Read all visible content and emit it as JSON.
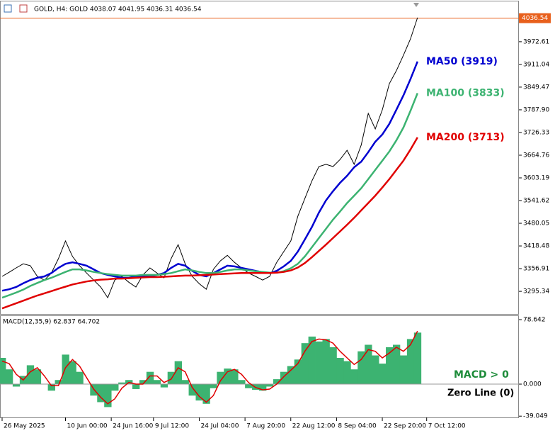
{
  "chart_data": [
    {
      "type": "line",
      "title": "GOLD, H4:  GOLD  4038.07 4041.95 4036.31 4036.54",
      "last_price": 4036.54,
      "xlim": [
        -0.3,
        73.4
      ],
      "xticks": [
        {
          "value": 0,
          "label": "26 May 2025"
        },
        {
          "value": 9,
          "label": "10 Jun 00:00"
        },
        {
          "value": 15.5,
          "label": "24 Jun 16:00"
        },
        {
          "value": 21.5,
          "label": "9 Jul 12:00"
        },
        {
          "value": 28,
          "label": "24 Jul 04:00"
        },
        {
          "value": 34.5,
          "label": "7 Aug 20:00"
        },
        {
          "value": 41,
          "label": "22 Aug 12:00"
        },
        {
          "value": 47.5,
          "label": "8 Sep 04:00"
        },
        {
          "value": 54,
          "label": "22 Sep 20:00"
        },
        {
          "value": 60.3,
          "label": "7 Oct 12:00"
        }
      ],
      "ylim": [
        3234,
        4082
      ],
      "yticks": [
        3295.34,
        3356.91,
        3418.48,
        3480.05,
        3541.62,
        3603.19,
        3664.76,
        3726.33,
        {
          "value": 3787.9,
          "label": "3787.90"
        },
        3849.47,
        {
          "value": 3911.04,
          "label": "3911.04"
        },
        3972.61
      ],
      "series": [
        {
          "color": "#000000",
          "values": [
            3336,
            3347,
            3359,
            3370,
            3365,
            3336,
            3326,
            3345,
            3384,
            3432,
            3390,
            3365,
            3345,
            3326,
            3307,
            3278,
            3326,
            3336,
            3320,
            3307,
            3340,
            3359,
            3345,
            3332,
            3384,
            3422,
            3370,
            3336,
            3316,
            3301,
            3355,
            3378,
            3393,
            3374,
            3359,
            3345,
            3336,
            3326,
            3336,
            3374,
            3403,
            3432,
            3499,
            3547,
            3595,
            3634,
            3640,
            3634,
            3653,
            3678,
            3640,
            3692,
            3778,
            3736,
            3788,
            3859,
            3894,
            3936,
            3980,
            4038
          ]
        },
        {
          "name": "MA50 (3919)",
          "color": "#0000d0",
          "values": [
            3297,
            3301,
            3307,
            3317,
            3326,
            3332,
            3336,
            3345,
            3359,
            3370,
            3374,
            3370,
            3365,
            3355,
            3345,
            3340,
            3336,
            3332,
            3332,
            3336,
            3336,
            3336,
            3340,
            3345,
            3359,
            3370,
            3365,
            3351,
            3340,
            3336,
            3345,
            3355,
            3365,
            3363,
            3359,
            3355,
            3351,
            3347,
            3345,
            3351,
            3363,
            3378,
            3403,
            3436,
            3470,
            3509,
            3542,
            3567,
            3590,
            3609,
            3632,
            3647,
            3673,
            3701,
            3721,
            3750,
            3788,
            3827,
            3871,
            3919
          ]
        },
        {
          "name": "MA100 (3833)",
          "color": "#3cb371",
          "values": [
            3278,
            3285,
            3292,
            3300,
            3310,
            3318,
            3326,
            3332,
            3340,
            3348,
            3355,
            3355,
            3352,
            3348,
            3345,
            3342,
            3340,
            3338,
            3338,
            3338,
            3340,
            3340,
            3340,
            3342,
            3345,
            3350,
            3355,
            3352,
            3348,
            3345,
            3345,
            3348,
            3352,
            3355,
            3355,
            3352,
            3350,
            3348,
            3346,
            3346,
            3350,
            3358,
            3370,
            3390,
            3415,
            3440,
            3465,
            3490,
            3512,
            3535,
            3555,
            3575,
            3600,
            3625,
            3650,
            3675,
            3705,
            3740,
            3785,
            3833
          ]
        },
        {
          "name": "MA200 (3713)",
          "color": "#e00000",
          "values": [
            3249,
            3256,
            3263,
            3270,
            3277,
            3284,
            3290,
            3296,
            3302,
            3308,
            3314,
            3318,
            3322,
            3325,
            3327,
            3328,
            3330,
            3330,
            3331,
            3332,
            3333,
            3334,
            3334,
            3335,
            3336,
            3337,
            3338,
            3338,
            3339,
            3340,
            3341,
            3342,
            3343,
            3344,
            3345,
            3345,
            3345,
            3345,
            3345,
            3346,
            3348,
            3352,
            3360,
            3372,
            3388,
            3405,
            3422,
            3440,
            3458,
            3476,
            3495,
            3515,
            3535,
            3555,
            3577,
            3600,
            3625,
            3650,
            3680,
            3713
          ]
        }
      ]
    },
    {
      "type": "macd",
      "title": "MACD(12,35,9) 62.837 64.702",
      "ylim": [
        -40.6,
        83
      ],
      "yticks": [
        78.642,
        {
          "value": 0,
          "label": "0.000"
        },
        -39.049
      ],
      "annotations": [
        "MACD > 0",
        "Zero Line (0)"
      ],
      "series": [
        {
          "color": "#3cb371",
          "values": [
            32,
            18,
            -3,
            10,
            23,
            18,
            0,
            -8,
            5,
            36,
            28,
            15,
            0,
            -14,
            -22,
            -28,
            -8,
            2,
            5,
            -6,
            5,
            15,
            5,
            -4,
            15,
            28,
            5,
            -14,
            -20,
            -24,
            -5,
            15,
            19,
            18,
            5,
            -5,
            -7,
            -8,
            -3,
            6,
            15,
            22,
            30,
            50,
            58,
            52,
            55,
            45,
            32,
            28,
            18,
            40,
            48,
            35,
            25,
            45,
            48,
            35,
            55,
            62.837
          ]
        },
        {
          "color": "#e00000",
          "values": [
            28,
            25,
            12,
            5,
            15,
            20,
            10,
            -2,
            -2,
            20,
            30,
            22,
            8,
            -6,
            -16,
            -24,
            -18,
            -5,
            2,
            0,
            0,
            10,
            10,
            2,
            6,
            20,
            15,
            -4,
            -15,
            -22,
            -14,
            4,
            15,
            18,
            12,
            2,
            -4,
            -7,
            -6,
            0,
            9,
            17,
            25,
            40,
            52,
            55,
            54,
            50,
            40,
            32,
            24,
            30,
            42,
            40,
            32,
            38,
            45,
            40,
            48,
            64.702
          ]
        }
      ]
    }
  ]
}
